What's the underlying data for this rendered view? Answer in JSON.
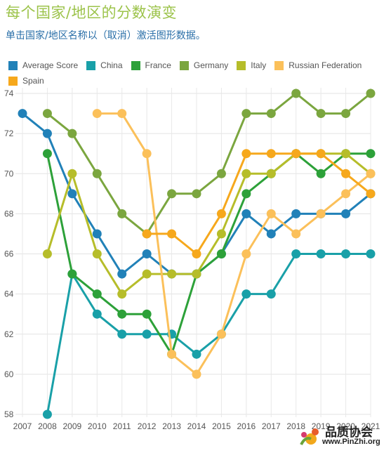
{
  "header": {
    "title": "每个国家/地区的分数演变",
    "subtitle": "单击国家/地区名称以（取消）激活图形数据。"
  },
  "watermark": {
    "name": "品质协会",
    "url": "www.PinZhi.org"
  },
  "chart_data": {
    "type": "line",
    "x": [
      2007,
      2008,
      2009,
      2010,
      2011,
      2012,
      2013,
      2014,
      2015,
      2016,
      2017,
      2018,
      2019,
      2020,
      2021
    ],
    "ylim": [
      58,
      74
    ],
    "yticks": [
      58,
      60,
      62,
      64,
      66,
      68,
      70,
      72,
      74
    ],
    "grid": true,
    "legend_position": "top",
    "series": [
      {
        "name": "Average Score",
        "color": "#2181b8",
        "values": [
          73,
          72,
          69,
          67,
          65,
          66,
          65,
          65,
          66,
          68,
          67,
          68,
          68,
          68,
          69
        ]
      },
      {
        "name": "China",
        "color": "#19a0a8",
        "values": [
          null,
          58,
          65,
          63,
          62,
          62,
          62,
          61,
          62,
          64,
          64,
          66,
          66,
          66,
          66
        ]
      },
      {
        "name": "France",
        "color": "#2da139",
        "values": [
          null,
          71,
          65,
          64,
          63,
          63,
          61,
          65,
          66,
          69,
          70,
          71,
          70,
          71,
          71
        ]
      },
      {
        "name": "Germany",
        "color": "#7ba63f",
        "values": [
          null,
          73,
          72,
          70,
          68,
          67,
          69,
          69,
          70,
          73,
          73,
          74,
          73,
          73,
          74
        ]
      },
      {
        "name": "Italy",
        "color": "#b6bd2a",
        "values": [
          null,
          66,
          70,
          66,
          64,
          65,
          65,
          65,
          67,
          70,
          70,
          71,
          71,
          71,
          70
        ]
      },
      {
        "name": "Russian Federation",
        "color": "#fbc05a",
        "values": [
          null,
          null,
          null,
          73,
          73,
          71,
          61,
          60,
          62,
          66,
          68,
          67,
          68,
          69,
          70
        ]
      },
      {
        "name": "Spain",
        "color": "#f6a81c",
        "values": [
          null,
          null,
          null,
          null,
          null,
          67,
          67,
          66,
          68,
          71,
          71,
          71,
          71,
          70,
          69
        ]
      }
    ]
  }
}
